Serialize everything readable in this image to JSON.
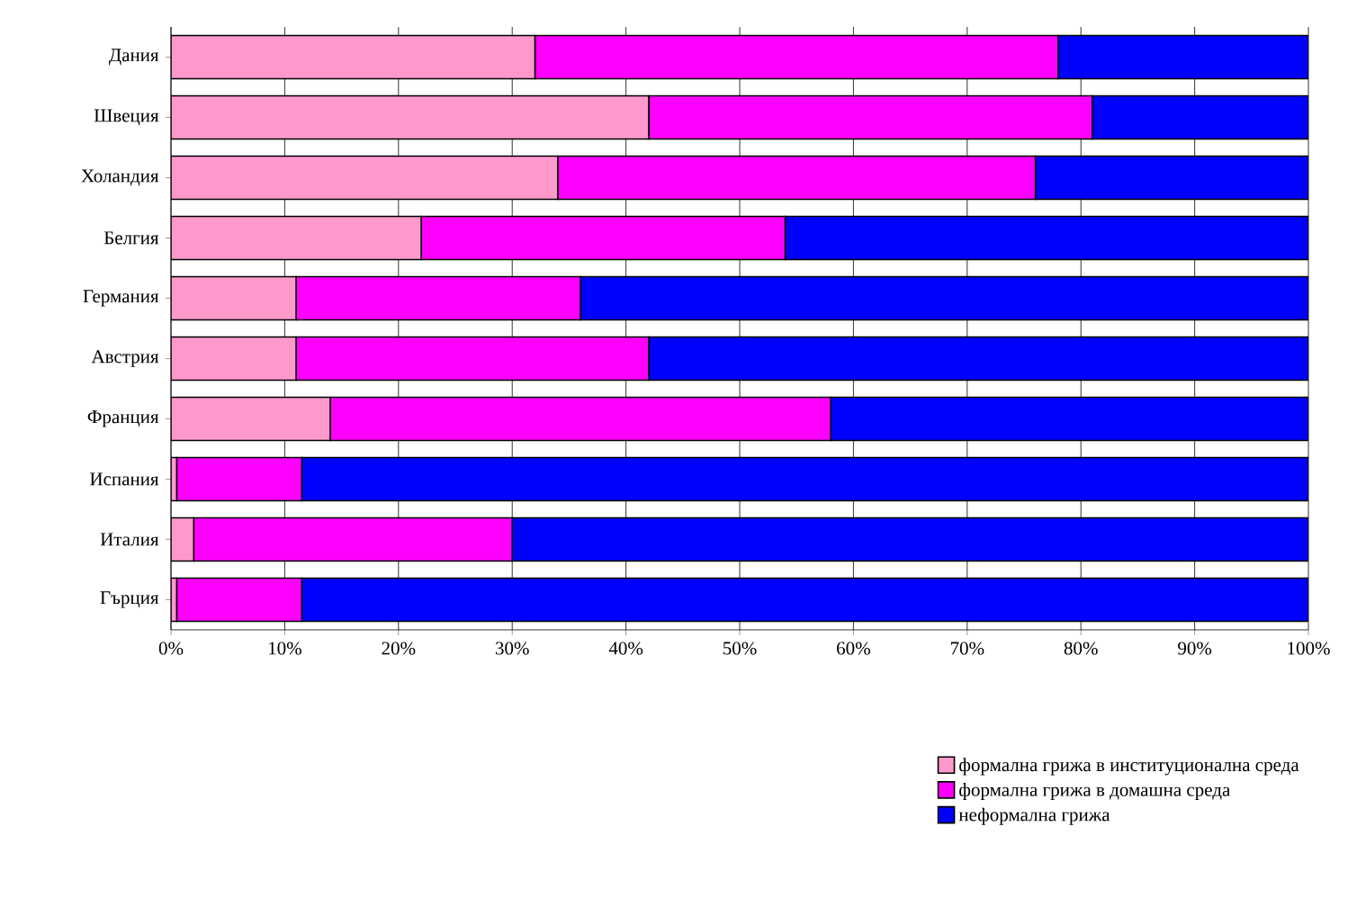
{
  "chart_data": {
    "type": "bar",
    "orientation": "horizontal",
    "stacked": true,
    "categories": [
      "Дания",
      "Швеция",
      "Холандия",
      "Белгия",
      "Германия",
      "Австрия",
      "Франция",
      "Испания",
      "Италия",
      "Гърция"
    ],
    "series": [
      {
        "name": "формална грижа в институционална среда",
        "color": "#ff99cc",
        "values": [
          32,
          42,
          34,
          22,
          11,
          11,
          14,
          0.5,
          2,
          0.5
        ]
      },
      {
        "name": "формална грижа в домашна среда",
        "color": "#ff00ff",
        "values": [
          46,
          39,
          42,
          32,
          25,
          31,
          44,
          11,
          28,
          11
        ]
      },
      {
        "name": "неформална грижа",
        "color": "#0000ff",
        "values": [
          22,
          19,
          24,
          46,
          64,
          58,
          42,
          88.5,
          70,
          88.5
        ]
      }
    ],
    "xlim": [
      0,
      100
    ],
    "xticks": [
      {
        "value": 0,
        "label": "0%"
      },
      {
        "value": 10,
        "label": "10%"
      },
      {
        "value": 20,
        "label": "20%"
      },
      {
        "value": 30,
        "label": "30%"
      },
      {
        "value": 40,
        "label": "40%"
      },
      {
        "value": 50,
        "label": "50%"
      },
      {
        "value": 60,
        "label": "60%"
      },
      {
        "value": 70,
        "label": "70%"
      },
      {
        "value": 80,
        "label": "80%"
      },
      {
        "value": 90,
        "label": "90%"
      },
      {
        "value": 100,
        "label": "100%"
      }
    ],
    "grid": "x",
    "legend": "bottom right"
  }
}
